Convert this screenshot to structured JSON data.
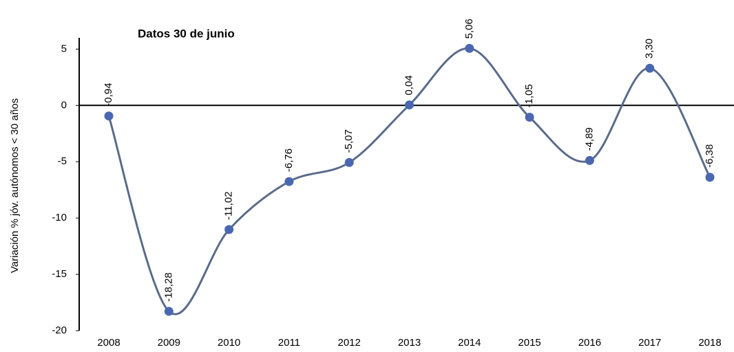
{
  "chart_data": {
    "type": "line",
    "title": "Datos 30 de junio",
    "y_label": "Variación % jóv. autónomos < 30 años",
    "categories": [
      "2008",
      "2009",
      "2010",
      "2011",
      "2012",
      "2013",
      "2014",
      "2015",
      "2016",
      "2017",
      "2018"
    ],
    "series": [
      {
        "name": "Variación",
        "color": "#5a6b8a",
        "marker_color": "#4a67b0",
        "values": [
          -0.94,
          -18.28,
          -11.02,
          -6.76,
          -5.07,
          0.04,
          5.06,
          -1.05,
          -4.89,
          3.3,
          -6.38
        ],
        "value_labels": [
          "-0,94",
          "-18,28",
          "-11,02",
          "-6,76",
          "-5,07",
          "0,04",
          "5,06",
          "-1,05",
          "-4,89",
          "3,30",
          "-6,38"
        ]
      }
    ],
    "negative_label_color": "#ff0000",
    "positive_label_color": "#2e75b6",
    "ylim": [
      -20,
      6
    ],
    "yticks": [
      -20,
      -15,
      -10,
      -5,
      0,
      5
    ],
    "smooth": true
  }
}
